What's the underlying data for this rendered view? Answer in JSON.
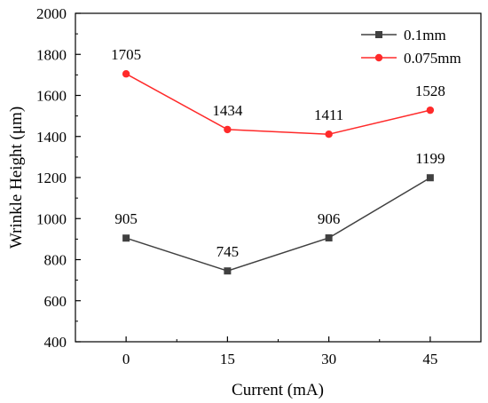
{
  "chart_data": {
    "type": "line",
    "title": "",
    "xlabel": "Current (mA)",
    "ylabel": "Wrinkle Height (μm)",
    "categories": [
      "0",
      "15",
      "30",
      "45"
    ],
    "x": [
      0,
      15,
      30,
      45
    ],
    "xlim": [
      -7.5,
      52.5
    ],
    "ylim": [
      400,
      2000
    ],
    "yticks": [
      "400",
      "600",
      "800",
      "1000",
      "1200",
      "1400",
      "1600",
      "1800",
      "2000"
    ],
    "grid": false,
    "legend_position": "top-right",
    "series": [
      {
        "name": "0.1mm",
        "values": [
          905,
          745,
          906,
          1199
        ],
        "labels": [
          "905",
          "745",
          "906",
          "1199"
        ],
        "color": "#404040",
        "marker": "square"
      },
      {
        "name": "0.075mm",
        "values": [
          1705,
          1434,
          1411,
          1528
        ],
        "labels": [
          "1705",
          "1434",
          "1411",
          "1528"
        ],
        "color": "#ff2a2a",
        "marker": "circle"
      }
    ]
  }
}
